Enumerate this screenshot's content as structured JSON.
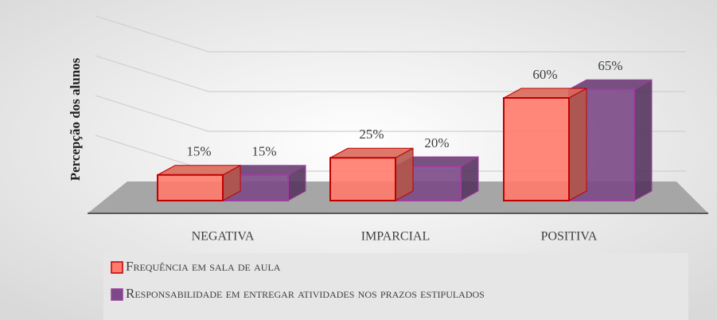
{
  "chart_data": {
    "type": "bar3d",
    "y_label": "Percepção dos alunos",
    "categories": [
      "NEGATIVA",
      "IMPARCIAL",
      "POSITIVA"
    ],
    "series": [
      {
        "name": "Frequência em sala de aula",
        "color": "#ff7b6b",
        "values": [
          15,
          25,
          60
        ],
        "value_labels": [
          "15%",
          "25%",
          "60%"
        ]
      },
      {
        "name": "Responsabilidade em entregar atividades nos prazos estipulados",
        "color": "#7b4a86",
        "values": [
          15,
          20,
          65
        ],
        "value_labels": [
          "15%",
          "20%",
          "65%"
        ]
      }
    ],
    "ylim": [
      0,
      80
    ],
    "yticks": [
      0,
      20,
      40,
      60,
      80
    ],
    "show_tick_labels": false,
    "grid": true
  }
}
